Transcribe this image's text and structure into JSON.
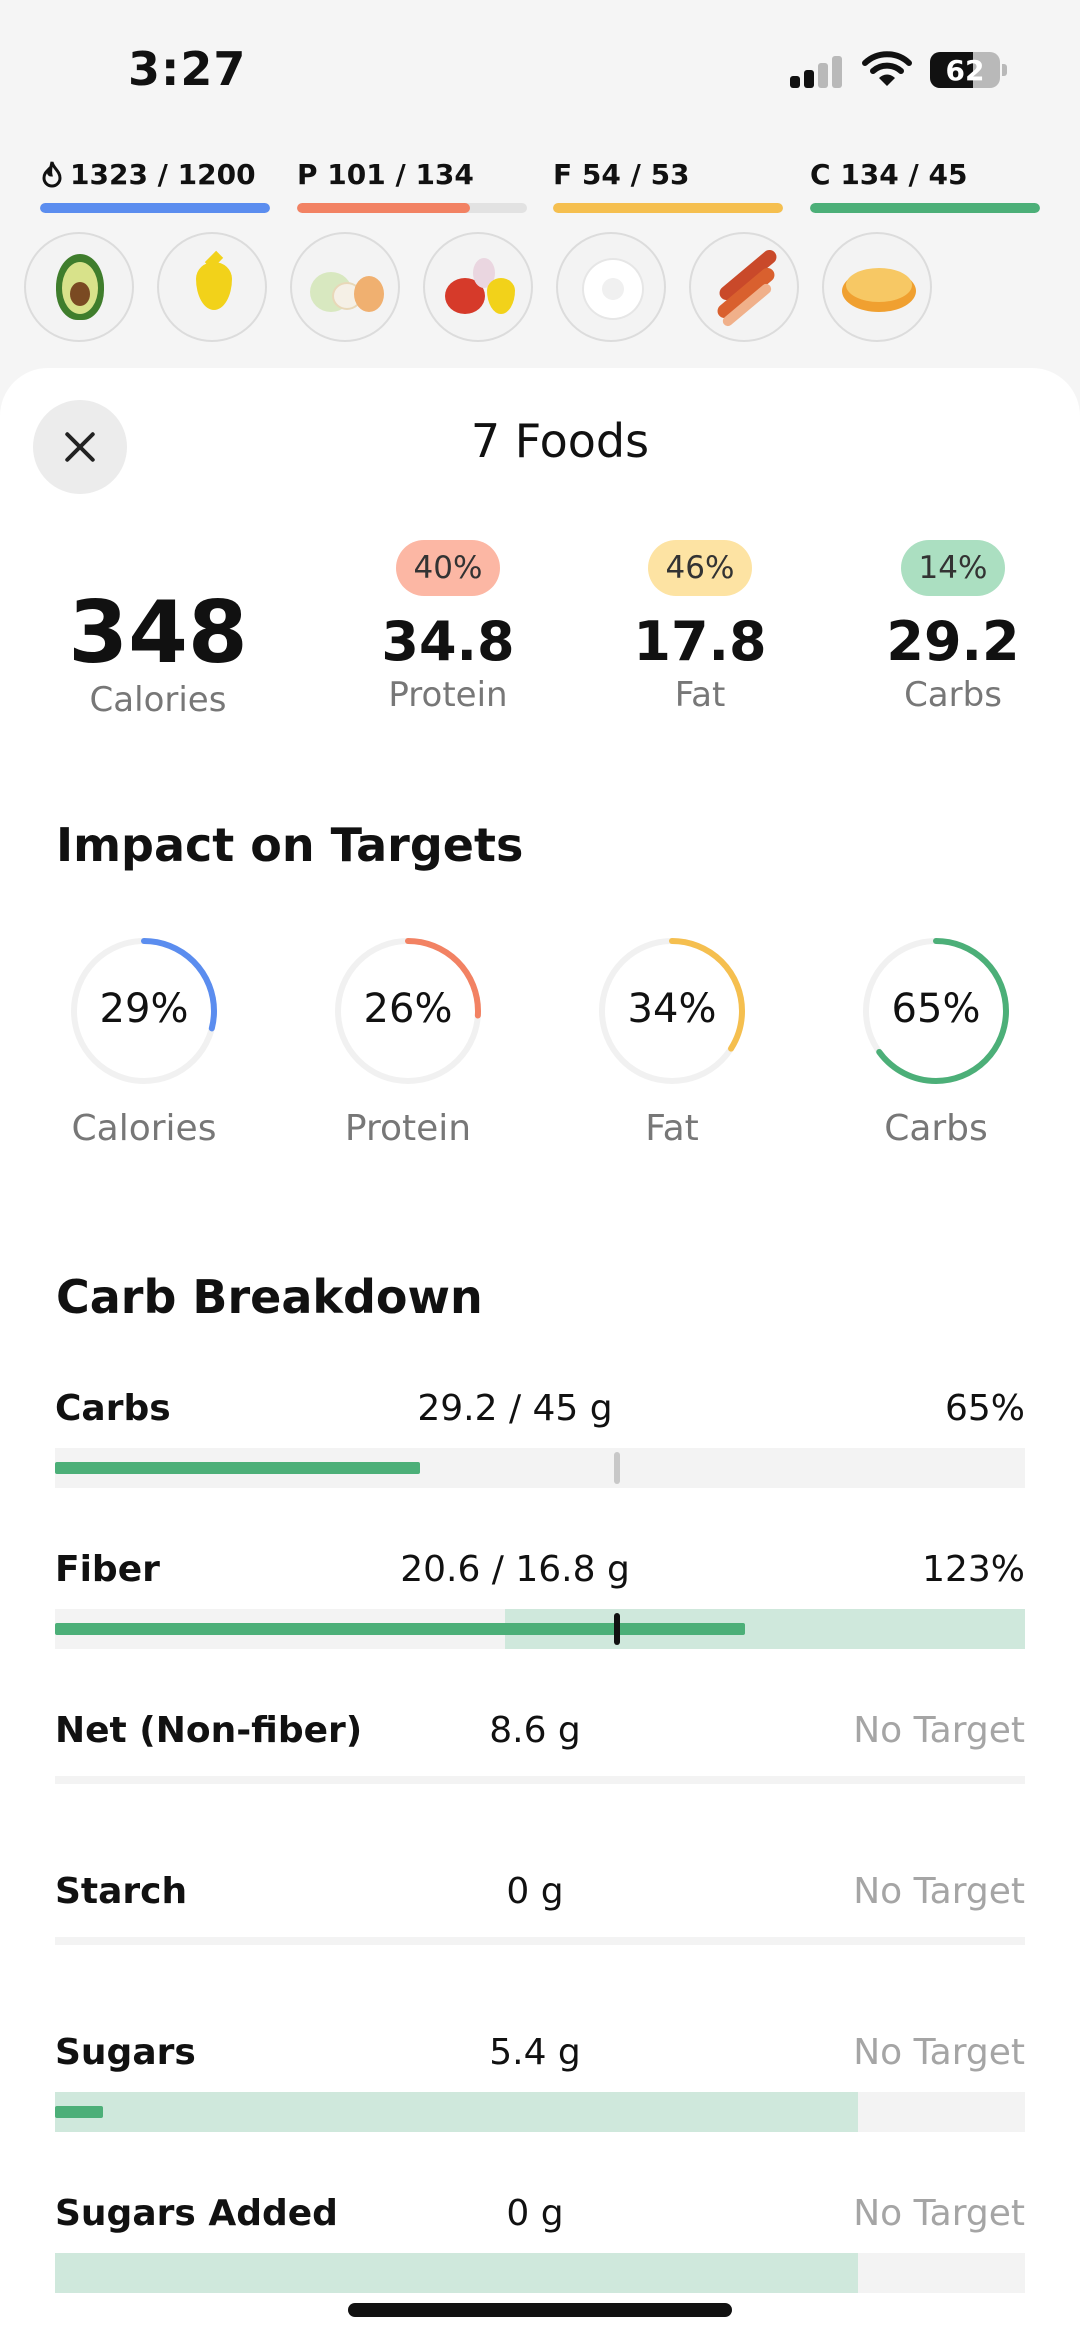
{
  "status_bar": {
    "time": "3:27",
    "battery": "62"
  },
  "macros": [
    {
      "prefix": "",
      "text": "1323 / 1200",
      "color": "#5b8def",
      "fill": 1.0,
      "icon": "flame-icon"
    },
    {
      "prefix": "P",
      "text": "101 / 134",
      "color": "#f28263",
      "fill": 0.75
    },
    {
      "prefix": "F",
      "text": "54 / 53",
      "color": "#f5bf4f",
      "fill": 1.0
    },
    {
      "prefix": "C",
      "text": "134 / 45",
      "color": "#4caf78",
      "fill": 1.0
    }
  ],
  "foods": [
    "avocado-icon",
    "oil-drop-icon",
    "eggs-and-cauliflower-icon",
    "tomato-and-oil-icon",
    "egg-icon",
    "bacon-icon",
    "pancake-icon"
  ],
  "sheet": {
    "title": "7 Foods",
    "calories": {
      "value": "348",
      "label": "Calories"
    },
    "macros": [
      {
        "badge": "40%",
        "value": "34.8",
        "label": "Protein",
        "badge_color": "#fcb7a4"
      },
      {
        "badge": "46%",
        "value": "17.8",
        "label": "Fat",
        "badge_color": "#fde3a3"
      },
      {
        "badge": "14%",
        "value": "29.2",
        "label": "Carbs",
        "badge_color": "#abdfc1"
      }
    ]
  },
  "impact": {
    "title": "Impact on Targets",
    "rings": [
      {
        "value": "29%",
        "label": "Calories",
        "fraction": 0.29,
        "color": "#5b8def"
      },
      {
        "value": "26%",
        "label": "Protein",
        "fraction": 0.26,
        "color": "#f28263"
      },
      {
        "value": "34%",
        "label": "Fat",
        "fraction": 0.34,
        "color": "#f5bf4f"
      },
      {
        "value": "65%",
        "label": "Carbs",
        "fraction": 0.65,
        "color": "#4caf78"
      }
    ]
  },
  "breakdown": {
    "title": "Carb Breakdown",
    "rows": [
      {
        "label": "Carbs",
        "value": "29.2 / 45 g",
        "pct": "65%",
        "muted": false
      },
      {
        "label": "Fiber",
        "value": "20.6 / 16.8 g",
        "pct": "123%",
        "muted": false
      },
      {
        "label": "Net (Non-fiber)",
        "value": "8.6 g",
        "pct": "No Target",
        "muted": true
      },
      {
        "label": "Starch",
        "value": "0 g",
        "pct": "No Target",
        "muted": true
      },
      {
        "label": "Sugars",
        "value": "5.4 g",
        "pct": "No Target",
        "muted": true
      },
      {
        "label": "Sugars Added",
        "value": "0 g",
        "pct": "No Target",
        "muted": true
      }
    ]
  }
}
